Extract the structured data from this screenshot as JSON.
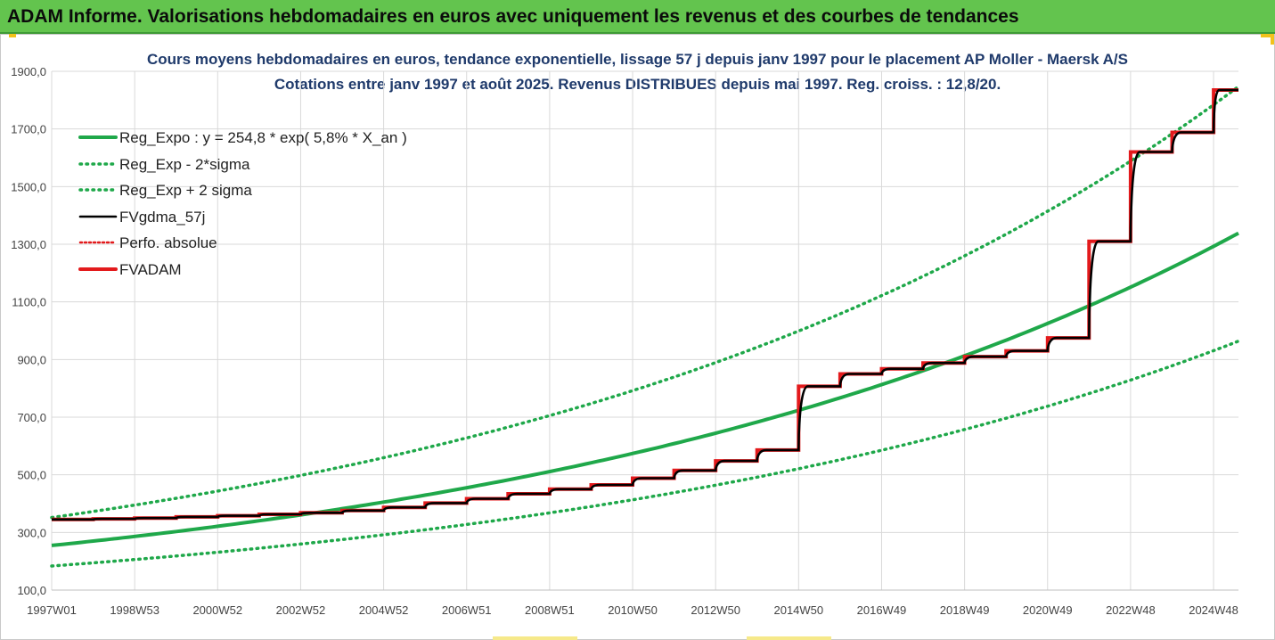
{
  "banner": {
    "title": "ADAM Informe. Valorisations hebdomadaires en euros avec uniquement les revenus et des courbes de tendances",
    "color": "#63c44e"
  },
  "chart_data": {
    "type": "line",
    "title": "Cours moyens hebdomadaires en euros, tendance exponentielle, lissage 57 j depuis janv 1997 pour le placement AP Moller - Maersk A/S",
    "subtitle": "Cotations entre janv 1997 et août 2025.  Revenus DISTRIBUES depuis mai 1997. Reg. croiss. : 12,8/20.",
    "ylim": [
      100,
      1900
    ],
    "y_ticks": [
      "100,0",
      "300,0",
      "500,0",
      "700,0",
      "900,0",
      "1100,0",
      "1300,0",
      "1500,0",
      "1700,0",
      "1900,0"
    ],
    "x_ticks": [
      "1997W01",
      "1998W53",
      "2000W52",
      "2002W52",
      "2004W52",
      "2006W51",
      "2008W51",
      "2010W50",
      "2012W50",
      "2014W50",
      "2016W49",
      "2018W49",
      "2020W49",
      "2022W48",
      "2024W48"
    ],
    "x_range_years": [
      1997.0,
      2025.6
    ],
    "grid": true,
    "legend_position": "top-left",
    "series": [
      {
        "name": "Reg_Expo : y = 254,8 * exp( 5,8% *  X_an )",
        "color": "#1fa84a",
        "style": "solid",
        "a": 254.8,
        "b": 0.058,
        "factor": 1.0
      },
      {
        "name": "Reg_Exp - 2*sigma",
        "color": "#1fa84a",
        "style": "dotted",
        "a": 254.8,
        "b": 0.058,
        "factor": 0.72
      },
      {
        "name": "Reg_Exp + 2 sigma",
        "color": "#1fa84a",
        "style": "dotted",
        "a": 254.8,
        "b": 0.058,
        "factor": 1.38
      },
      {
        "name": "FVgdma_57j",
        "color": "#000000",
        "style": "solid-smoothed"
      },
      {
        "name": "Perfo. absolue",
        "color": "#e31a1c",
        "style": "dotted"
      },
      {
        "name": "FVADAM",
        "color": "#e31a1c",
        "style": "step",
        "steps": [
          {
            "x": 1997.0,
            "y": 345
          },
          {
            "x": 1998.0,
            "y": 347
          },
          {
            "x": 1999.0,
            "y": 350
          },
          {
            "x": 2000.0,
            "y": 354
          },
          {
            "x": 2001.0,
            "y": 358
          },
          {
            "x": 2002.0,
            "y": 363
          },
          {
            "x": 2003.0,
            "y": 368
          },
          {
            "x": 2004.0,
            "y": 376
          },
          {
            "x": 2005.0,
            "y": 387
          },
          {
            "x": 2006.0,
            "y": 402
          },
          {
            "x": 2007.0,
            "y": 417
          },
          {
            "x": 2008.0,
            "y": 434
          },
          {
            "x": 2009.0,
            "y": 450
          },
          {
            "x": 2010.0,
            "y": 465
          },
          {
            "x": 2011.0,
            "y": 488
          },
          {
            "x": 2012.0,
            "y": 515
          },
          {
            "x": 2013.0,
            "y": 548
          },
          {
            "x": 2014.0,
            "y": 586
          },
          {
            "x": 2015.0,
            "y": 807
          },
          {
            "x": 2016.0,
            "y": 850
          },
          {
            "x": 2017.0,
            "y": 868
          },
          {
            "x": 2018.0,
            "y": 888
          },
          {
            "x": 2019.0,
            "y": 910
          },
          {
            "x": 2020.0,
            "y": 930
          },
          {
            "x": 2021.0,
            "y": 975
          },
          {
            "x": 2022.0,
            "y": 1310
          },
          {
            "x": 2023.0,
            "y": 1620
          },
          {
            "x": 2024.0,
            "y": 1688
          },
          {
            "x": 2025.0,
            "y": 1835
          }
        ]
      }
    ]
  }
}
